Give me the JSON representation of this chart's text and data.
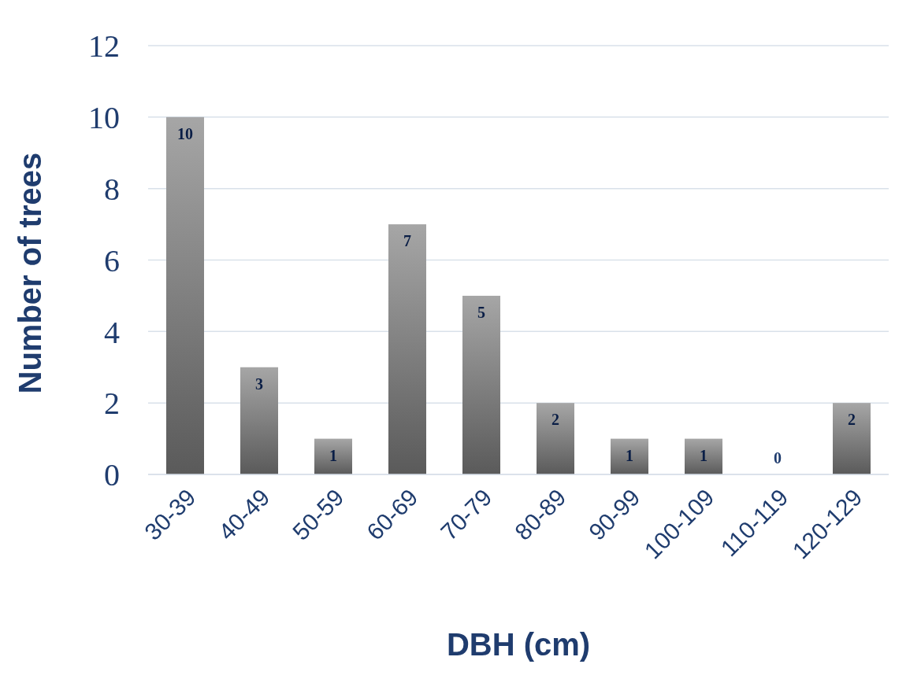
{
  "chart_data": {
    "type": "bar",
    "xlabel": "DBH (cm)",
    "ylabel": "Number of trees",
    "categories": [
      "30-39",
      "40-49",
      "50-59",
      "60-69",
      "70-79",
      "80-89",
      "90-99",
      "100-109",
      "110-119",
      "120-129"
    ],
    "values": [
      10,
      3,
      1,
      7,
      5,
      2,
      1,
      1,
      0,
      2
    ],
    "color": "#5a5a5a",
    "ylim": [
      0,
      12
    ],
    "yticks": [
      0,
      2,
      4,
      6,
      8,
      10,
      12
    ],
    "grid": "y",
    "data_labels": true
  }
}
